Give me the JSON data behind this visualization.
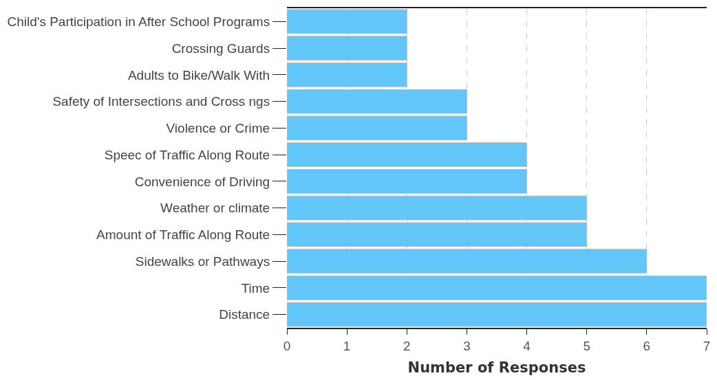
{
  "chart_data": {
    "type": "bar",
    "orientation": "horizontal",
    "xlabel": "Number of Responses",
    "categories": [
      "Child's Participation in After School Programs",
      "Crossing Guards",
      "Adults to Bike/Walk With",
      "Safety of Intersections and Cross ngs",
      "Violence or Crime",
      "Speec of Traffic Along Route",
      "Convenience of Driving",
      "Weather or climate",
      "Amount of Traffic Along Route",
      "Sidewalks or Pathways",
      "Time",
      "Distance"
    ],
    "values": [
      2,
      2,
      2,
      3,
      3,
      4,
      4,
      5,
      5,
      6,
      7,
      7
    ],
    "color": "#62c6f8",
    "xlim": [
      0,
      7
    ],
    "xticks": [
      0,
      1,
      2,
      3,
      4,
      5,
      6,
      7
    ],
    "grid": "x",
    "legend": false
  }
}
